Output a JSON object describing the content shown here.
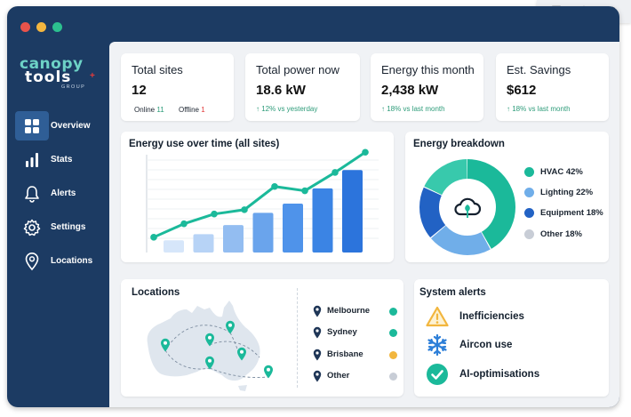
{
  "browser_tools": {
    "icons": [
      "printer-icon",
      "paint-palette-icon",
      "refresh-icon"
    ]
  },
  "window": {
    "traffic_lights": [
      "#e9534b",
      "#f4b63f",
      "#2cc08f"
    ]
  },
  "brand": {
    "line1": "canopy",
    "line2": "tools",
    "line3": "GROUP",
    "colors": {
      "canopy": "#6dd2c6",
      "tools": "#ffffff",
      "accent": "#e23b3b"
    }
  },
  "sidebar": {
    "items": [
      {
        "label": "Overview",
        "icon": "grid-icon",
        "active": true
      },
      {
        "label": "Stats",
        "icon": "bar-chart-icon",
        "active": false
      },
      {
        "label": "Alerts",
        "icon": "bell-icon",
        "active": false
      },
      {
        "label": "Settings",
        "icon": "gear-icon",
        "active": false
      },
      {
        "label": "Locations",
        "icon": "map-pin-icon",
        "active": false
      }
    ]
  },
  "stats": {
    "total_sites": {
      "title": "Total sites",
      "value": "12",
      "online_label": "Online",
      "online_count": "11",
      "offline_label": "Offline",
      "offline_count": "1"
    },
    "total_power": {
      "title": "Total power now",
      "value": "18.6 kW",
      "sub": "↑ 12% vs yesterday"
    },
    "energy_month": {
      "title": "Energy this month",
      "value": "2,438 kW",
      "sub": "↑ 18% vs last month"
    },
    "savings": {
      "title": "Est. Savings",
      "value": "$612",
      "sub": "↑ 18% vs last month"
    }
  },
  "colors": {
    "positive": "#2e9c7a",
    "offline": "#e23b3b",
    "teal": "#1bb99a",
    "blue": "#3d8be8"
  },
  "chart_data": [
    {
      "type": "bar",
      "title": "Energy use over time (all sites)",
      "bars": [
        2,
        3,
        4.5,
        6.5,
        8,
        10.5,
        13.5
      ],
      "line": [
        2.5,
        4.7,
        6.3,
        7,
        10.8,
        10.1,
        13.1,
        16.4
      ],
      "ylim": [
        0,
        16
      ],
      "grid": true
    },
    {
      "type": "pie",
      "title": "Energy breakdown",
      "slices": [
        {
          "label": "HVAC 42%",
          "value": 42,
          "color": "#1bb99a"
        },
        {
          "label": "Lighting 22%",
          "value": 22,
          "color": "#70aee9"
        },
        {
          "label": "Equipment 18%",
          "value": 18,
          "color": "#2262c4"
        },
        {
          "label": "Other 18%",
          "value": 18,
          "color": "#38c9ac"
        }
      ]
    }
  ],
  "legend_extra": {
    "other_color": "#c8cdd6"
  },
  "locations": {
    "title": "Locations",
    "items": [
      {
        "name": "Melbourne",
        "color": "#1bb99a"
      },
      {
        "name": "Sydney",
        "color": "#1bb99a"
      },
      {
        "name": "Brisbane",
        "color": "#f2b63e"
      },
      {
        "name": "Other",
        "color": "#c8cdd6"
      }
    ]
  },
  "alerts": {
    "title": "System alerts",
    "items": [
      {
        "label": "Inefficiencies",
        "icon": "warning-icon"
      },
      {
        "label": "Aircon use",
        "icon": "snowflake-icon"
      },
      {
        "label": "AI-optimisations",
        "icon": "check-circle-icon"
      }
    ]
  }
}
